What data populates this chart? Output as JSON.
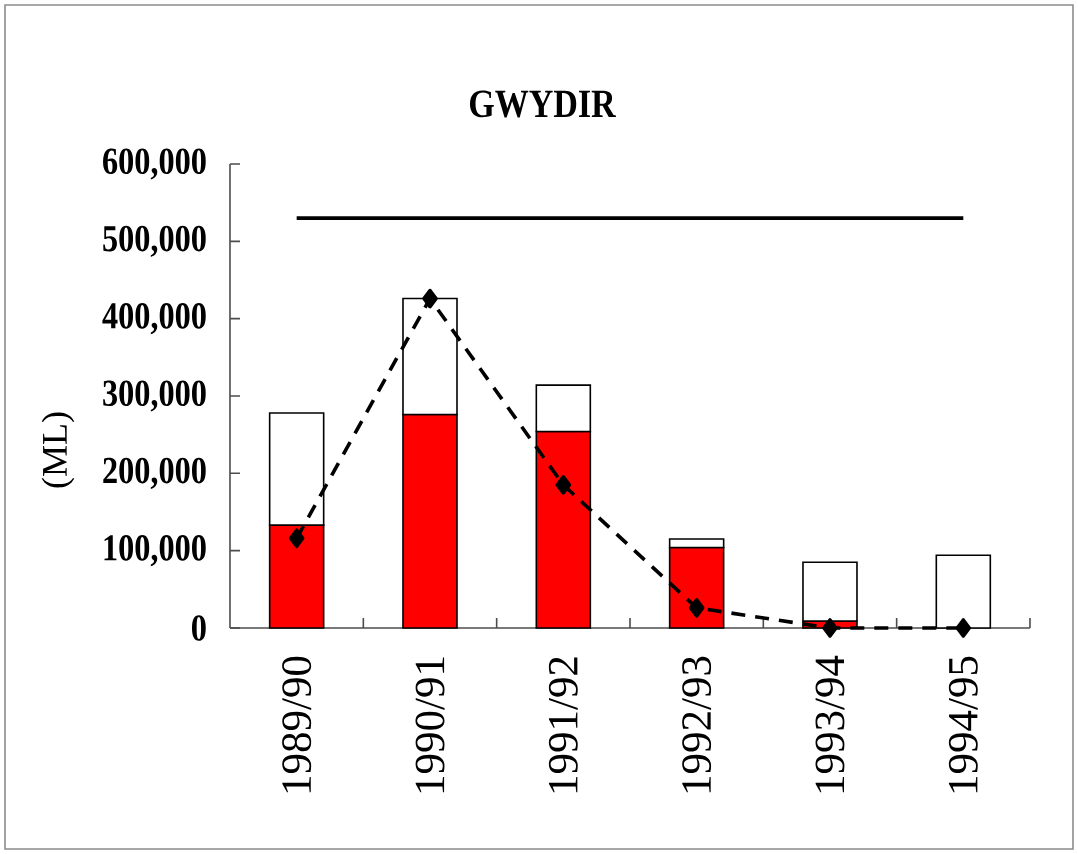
{
  "chart_data": {
    "type": "bar",
    "title": "GWYDIR",
    "ylabel": "(ML)",
    "categories": [
      "1989/90",
      "1990/91",
      "1991/92",
      "1992/93",
      "1993/94",
      "1994/95"
    ],
    "stacked": true,
    "series": [
      {
        "color": "#ff0000",
        "values": [
          133000,
          276000,
          254000,
          104000,
          9000,
          0
        ]
      },
      {
        "color": "#ffffff",
        "values": [
          145000,
          150000,
          60000,
          11000,
          76000,
          94000
        ]
      },
      {
        "type": "line",
        "color": "#000000",
        "values": [
          116000,
          426000,
          185000,
          26000,
          0,
          0
        ],
        "marker": "diamond",
        "line_style": "dashed"
      },
      {
        "type": "line",
        "color": "#000000",
        "values": [
          530000,
          530000,
          530000,
          530000,
          530000,
          530000
        ],
        "marker": "none",
        "line_style": "solid"
      }
    ],
    "ylim": [
      0,
      600000
    ],
    "yticks": [
      0,
      {
        "value": 100000,
        "label": "100,000"
      },
      {
        "value": 200000,
        "label": "200,000"
      },
      {
        "value": 300000,
        "label": "300,000"
      },
      {
        "value": 400000,
        "label": "400,000"
      },
      {
        "value": 500000,
        "label": "500,000"
      },
      {
        "value": 600000,
        "label": "600,000"
      }
    ]
  }
}
